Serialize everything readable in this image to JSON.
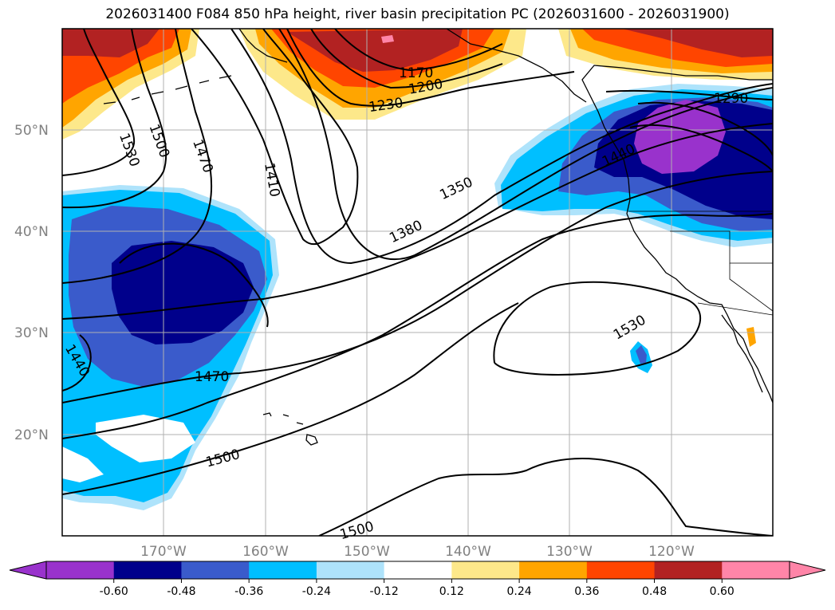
{
  "title": "2026031400 F084 850 hPa height, river basin precipitation PC (2026031600 - 2026031900)",
  "map": {
    "region": "North Pacific",
    "projection": "Plate Carree",
    "lon_range": [
      "180°",
      "110°W"
    ],
    "lat_range": [
      "10°N",
      "60°N"
    ],
    "lat_ticks": [
      "50°N",
      "40°N",
      "30°N",
      "20°N"
    ],
    "lon_ticks": [
      "170°W",
      "160°W",
      "150°W",
      "140°W",
      "130°W",
      "120°W"
    ],
    "grid": true
  },
  "contours": {
    "variable": "850 hPa height",
    "labels": [
      "1530",
      "1500",
      "1470",
      "1410",
      "1350",
      "1380",
      "1170",
      "1200",
      "1230",
      "1290",
      "1440",
      "1530",
      "1440",
      "1470",
      "1500",
      "1500"
    ]
  },
  "colorbar": {
    "ticks": [
      "-0.60",
      "-0.48",
      "-0.36",
      "-0.24",
      "-0.12",
      "0.12",
      "0.24",
      "0.36",
      "0.48",
      "0.60"
    ],
    "colors": [
      "#9932cc",
      "#00008b",
      "#3a5bcb",
      "#00bfff",
      "#aee3fb",
      "#ffffff",
      "#fde88a",
      "#ffa500",
      "#ff4500",
      "#b22222",
      "#ff85a8",
      "#ff85a8"
    ],
    "extend": "both"
  },
  "colors": {
    "frame": "#000000",
    "grid": "#b0b0b0",
    "ticklabel": "#808080"
  }
}
